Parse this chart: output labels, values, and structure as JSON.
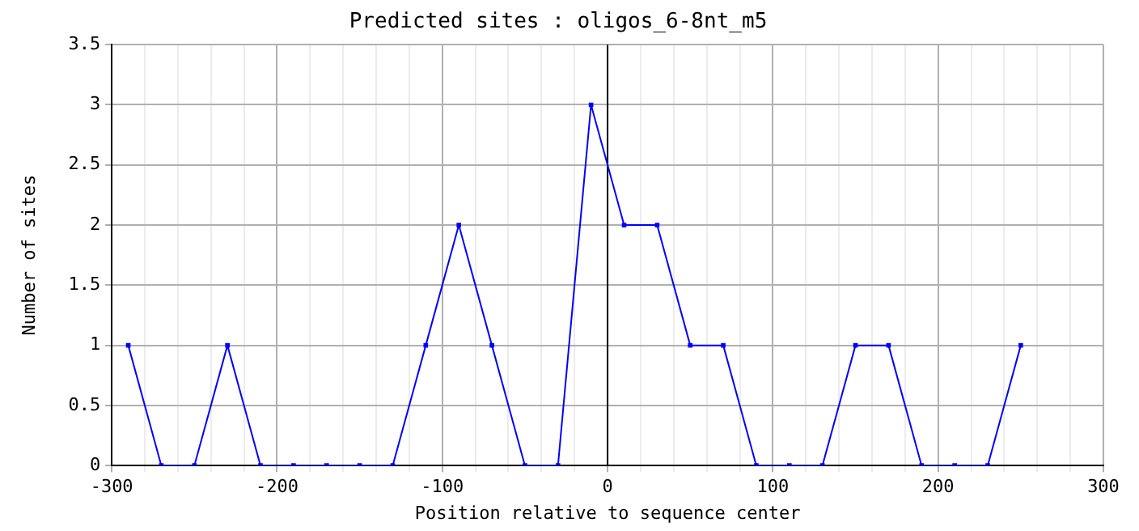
{
  "chart_data": {
    "type": "line",
    "title": "Predicted sites : oligos_6-8nt_m5",
    "xlabel": "Position relative to sequence center",
    "ylabel": "Number of sites",
    "x": [
      -290,
      -270,
      -250,
      -230,
      -210,
      -190,
      -170,
      -150,
      -130,
      -110,
      -90,
      -70,
      -50,
      -30,
      -10,
      10,
      30,
      50,
      70,
      90,
      110,
      130,
      150,
      170,
      190,
      210,
      230,
      250
    ],
    "series": [
      {
        "color": "#0000ff",
        "values": [
          1,
          0,
          0,
          1,
          0,
          0,
          0,
          0,
          0,
          1,
          2,
          1,
          0,
          0,
          3,
          2,
          2,
          1,
          1,
          0,
          0,
          0,
          1,
          1,
          0,
          0,
          0,
          1
        ]
      }
    ],
    "xlim": [
      -300,
      300
    ],
    "xticks": [
      -300,
      {
        "value": -280,
        "label": null
      },
      {
        "value": -260,
        "label": null
      },
      {
        "value": -240,
        "label": null
      },
      {
        "value": -220,
        "label": null
      },
      -200,
      {
        "value": -180,
        "label": null
      },
      {
        "value": -160,
        "label": null
      },
      {
        "value": -140,
        "label": null
      },
      {
        "value": -120,
        "label": null
      },
      -100,
      {
        "value": -80,
        "label": null
      },
      {
        "value": -60,
        "label": null
      },
      {
        "value": -40,
        "label": null
      },
      {
        "value": -20,
        "label": null
      },
      0,
      {
        "value": 20,
        "label": null
      },
      {
        "value": 40,
        "label": null
      },
      {
        "value": 60,
        "label": null
      },
      {
        "value": 80,
        "label": null
      },
      100,
      {
        "value": 120,
        "label": null
      },
      {
        "value": 140,
        "label": null
      },
      {
        "value": 160,
        "label": null
      },
      {
        "value": 180,
        "label": null
      },
      200,
      {
        "value": 220,
        "label": null
      },
      {
        "value": 240,
        "label": null
      },
      {
        "value": 260,
        "label": null
      },
      {
        "value": 280,
        "label": null
      },
      300
    ],
    "ylim": [
      0,
      3.5
    ],
    "yticks": [
      0,
      0.5,
      1,
      1.5,
      2,
      2.5,
      3,
      3.5
    ],
    "ref_lines": [
      {
        "axis": "x",
        "value": 0,
        "color": "#000000"
      }
    ],
    "grid": true,
    "marker": "square",
    "line_style": "solid",
    "legend": false
  }
}
